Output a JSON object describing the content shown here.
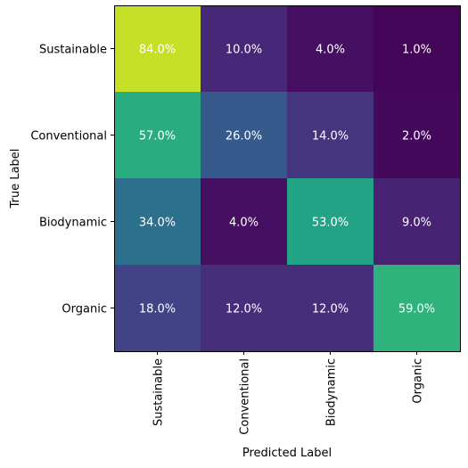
{
  "chart_data": {
    "type": "heatmap",
    "title": "",
    "xlabel": "Predicted Label",
    "ylabel": "True Label",
    "x_categories": [
      "Sustainable",
      "Conventional",
      "Biodynamic",
      "Organic"
    ],
    "y_categories": [
      "Sustainable",
      "Conventional",
      "Biodynamic",
      "Organic"
    ],
    "values": [
      [
        84.0,
        10.0,
        4.0,
        1.0
      ],
      [
        57.0,
        26.0,
        14.0,
        2.0
      ],
      [
        34.0,
        4.0,
        53.0,
        9.0
      ],
      [
        18.0,
        12.0,
        12.0,
        59.0
      ]
    ],
    "labels": [
      [
        "84.0%",
        "10.0%",
        "4.0%",
        "1.0%"
      ],
      [
        "57.0%",
        "26.0%",
        "14.0%",
        "2.0%"
      ],
      [
        "34.0%",
        "4.0%",
        "53.0%",
        "9.0%"
      ],
      [
        "18.0%",
        "12.0%",
        "12.0%",
        "59.0%"
      ]
    ],
    "colormap": "viridis",
    "value_range": [
      1.0,
      84.0
    ],
    "colors": {
      "label_text": "#ffffff",
      "frame": "#000000"
    }
  }
}
